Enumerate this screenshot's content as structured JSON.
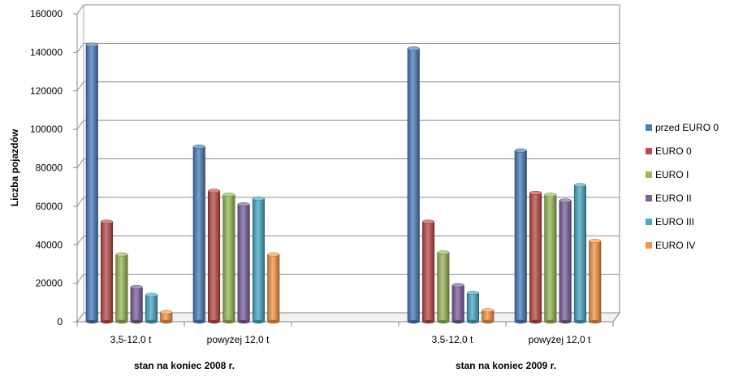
{
  "chart_data": {
    "type": "bar",
    "ylabel": "Liczba pojazdów",
    "ylim": [
      0,
      160000
    ],
    "yticks": [
      "0",
      "20000",
      "40000",
      "60000",
      "80000",
      "100000",
      "120000",
      "140000",
      "160000"
    ],
    "groups": [
      {
        "label": "stan na koniec 2008 r.",
        "categories": [
          "3,5-12,0 t",
          "powyżej  12,0 t"
        ]
      },
      {
        "label": "stan na koniec 2009 r.",
        "categories": [
          "3,5-12,0 t",
          "powyżej  12,0 t"
        ]
      }
    ],
    "series": [
      {
        "name": "przed EURO 0",
        "color": "#4A7EBB",
        "values": [
          144000,
          91000,
          142000,
          89000
        ]
      },
      {
        "name": "EURO 0",
        "color": "#BE4B48",
        "values": [
          52000,
          68000,
          52000,
          67000
        ]
      },
      {
        "name": "EURO I",
        "color": "#98B954",
        "values": [
          35000,
          66000,
          36000,
          66000
        ]
      },
      {
        "name": "EURO II",
        "color": "#7D60A0",
        "values": [
          18000,
          61000,
          19000,
          63000
        ]
      },
      {
        "name": "EURO III",
        "color": "#46AAC5",
        "values": [
          14000,
          64000,
          15000,
          71000
        ]
      },
      {
        "name": "EURO IV",
        "color": "#F79646",
        "values": [
          5000,
          35000,
          6000,
          42000
        ]
      }
    ],
    "legend_position": "right",
    "grid": true
  }
}
